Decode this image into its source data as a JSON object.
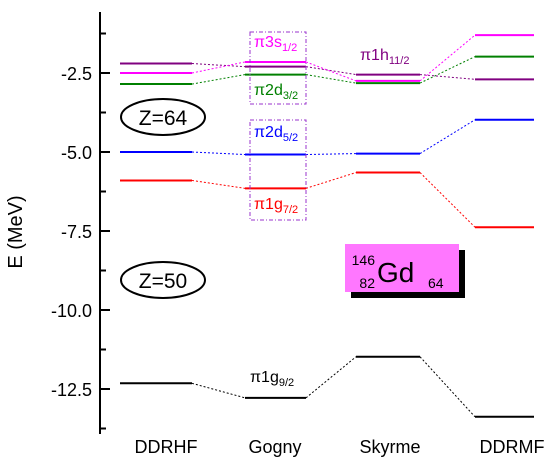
{
  "chart_data": {
    "type": "level-scheme",
    "ylabel": "E (MeV)",
    "ylim": [
      -13.8,
      -0.3
    ],
    "yticks": [
      "-2.5",
      "-5.0",
      "-7.5",
      "-10.0",
      "-12.5"
    ],
    "ytick_values": [
      -2.5,
      -5.0,
      -7.5,
      -10.0,
      -12.5
    ],
    "categories": [
      "DDRHF",
      "Gogny",
      "Skyrme",
      "DDRMF"
    ],
    "series": [
      {
        "name": "π1g9/2",
        "color": "#000000",
        "values": [
          -12.32,
          -12.78,
          -11.48,
          -13.38
        ]
      },
      {
        "name": "π1g7/2",
        "color": "#ff0000",
        "values": [
          -5.9,
          -6.15,
          -5.65,
          -7.38
        ]
      },
      {
        "name": "π2d5/2",
        "color": "#0000ff",
        "values": [
          -5.0,
          -5.08,
          -5.05,
          -3.98
        ]
      },
      {
        "name": "π2d3/2",
        "color": "#008000",
        "values": [
          -2.85,
          -2.55,
          -2.82,
          -1.98
        ]
      },
      {
        "name": "π1h11/2",
        "color": "#800080",
        "values": [
          -2.2,
          -2.3,
          -2.55,
          -2.7
        ]
      },
      {
        "name": "π3s1/2",
        "color": "#ff00ff",
        "values": [
          -2.5,
          -2.15,
          -2.75,
          -1.3
        ]
      }
    ],
    "annotations": {
      "z64": "Z=64",
      "z50": "Z=50",
      "nucleus": {
        "a": "146",
        "z": "82",
        "sym": "Gd",
        "n": "64"
      },
      "labels": {
        "p3s": {
          "main": "π3s",
          "sub": "1/2"
        },
        "p2d3": {
          "main": "π2d",
          "sub": "3/2"
        },
        "p1h": {
          "main": "π1h",
          "sub": "11/2"
        },
        "p2d5": {
          "main": "π2d",
          "sub": "5/2"
        },
        "p1g7": {
          "main": "π1g",
          "sub": "7/2"
        },
        "p1g9": {
          "main": "π1g",
          "sub": "9/2"
        }
      }
    }
  }
}
